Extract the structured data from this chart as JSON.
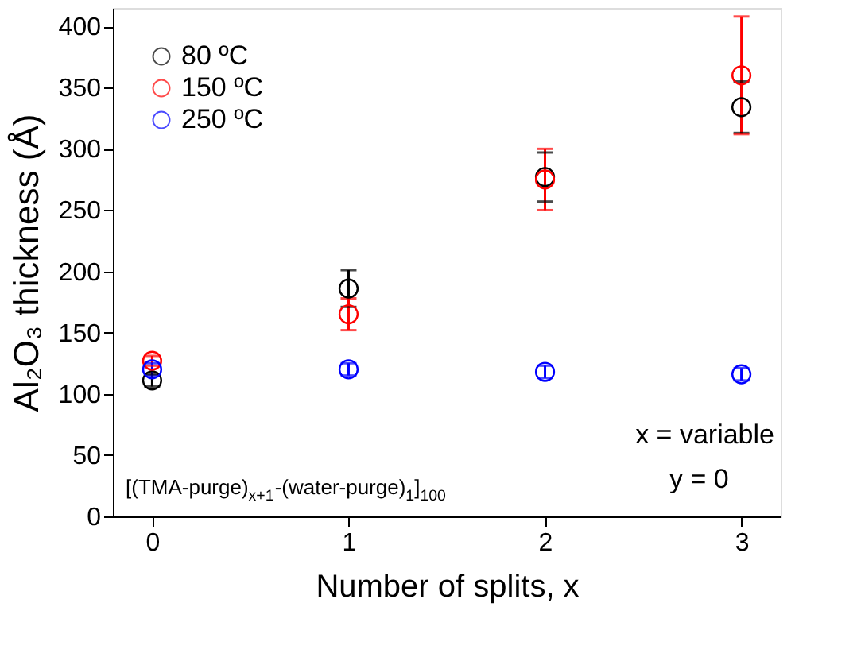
{
  "chart_data": {
    "type": "scatter",
    "xlabel": "Number of splits, x",
    "ylabel": "Al₂O₃ thickness (Å)",
    "x": [
      0,
      1,
      2,
      3
    ],
    "xlim": [
      -0.2,
      3.2
    ],
    "xticks": [
      0,
      1,
      2,
      3
    ],
    "ylim": [
      0,
      415
    ],
    "yticks": [
      0,
      50,
      100,
      150,
      200,
      250,
      300,
      350,
      400
    ],
    "marker": "circle",
    "legend": "top left",
    "grid": false,
    "series": [
      {
        "name": "80 ºC",
        "color": "#000000",
        "values": [
          111,
          186,
          277,
          334
        ],
        "errors": [
          5,
          15,
          20,
          21
        ]
      },
      {
        "name": "150 ºC",
        "color": "#ff0000",
        "values": [
          127,
          165,
          275,
          360
        ],
        "errors": [
          4,
          13,
          25,
          48
        ]
      },
      {
        "name": "250 ºC",
        "color": "#0000ff",
        "values": [
          120,
          120,
          118,
          116
        ],
        "errors": [
          5,
          5,
          5,
          5
        ]
      }
    ],
    "annotations": [
      "[(TMA-purge)$_{x+1}$-(water-purge)$_{1}$]$_{100}$",
      "x = variable",
      "y = 0"
    ]
  }
}
